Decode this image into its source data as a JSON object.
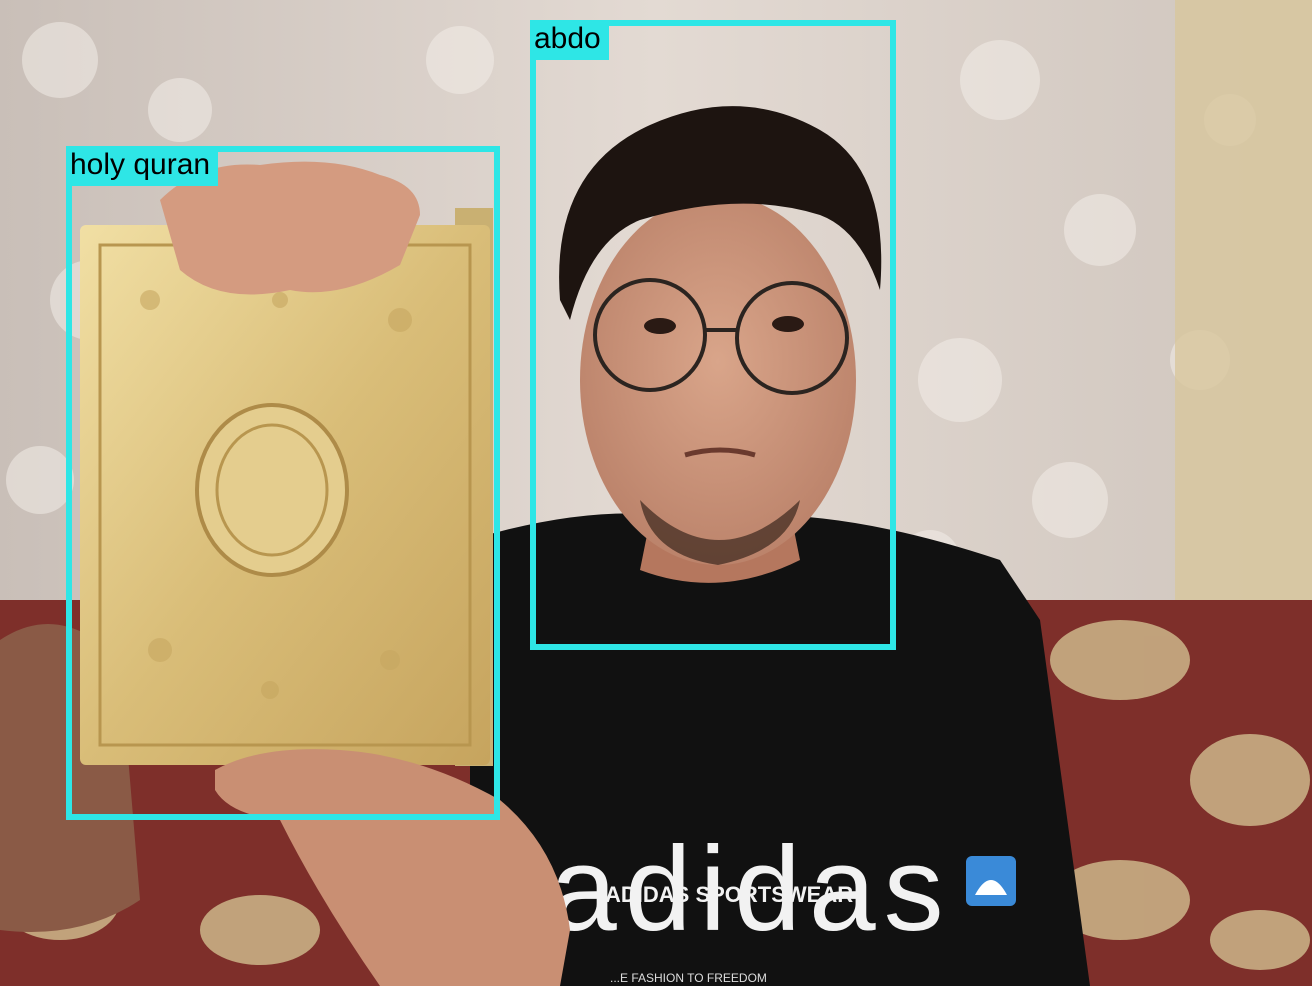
{
  "detections": [
    {
      "label": "holy quran",
      "color": "#2ee6e6"
    },
    {
      "label": "abdo",
      "color": "#2ee6e6"
    }
  ],
  "shirt": {
    "logo_text": "adidas",
    "sportswear_text": "ADIDAS SPORTSWEAR",
    "slogan_text": "...E FASHION TO FREEDOM"
  }
}
